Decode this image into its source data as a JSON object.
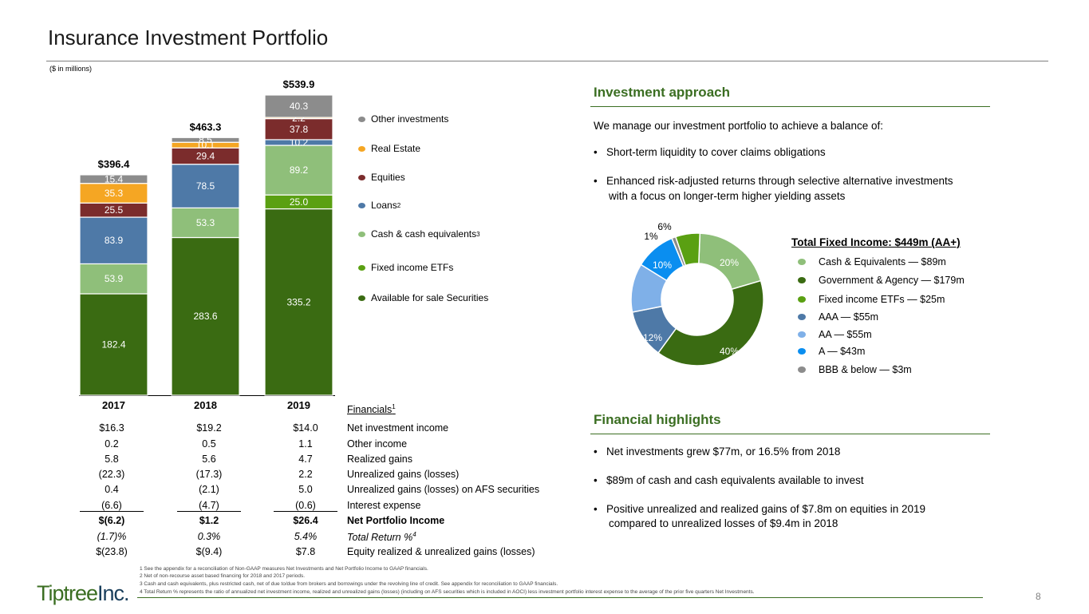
{
  "header": {
    "title": "Insurance Investment Portfolio",
    "subtitle": "($ in millions)"
  },
  "chart_data": [
    {
      "type": "bar",
      "stacked": true,
      "categories": [
        "2017",
        "2018",
        "2019"
      ],
      "totals": [
        "$396.4",
        "$463.3",
        "$539.9"
      ],
      "series": [
        {
          "name": "Available for sale Securities",
          "color": "#3a6b12",
          "values": [
            182.4,
            283.6,
            335.2
          ]
        },
        {
          "name": "Fixed income ETFs",
          "color": "#5aa012",
          "values": [
            0,
            0,
            25.0
          ]
        },
        {
          "name": "Cash & cash equivalents",
          "sup": "3",
          "color": "#8fbf7a",
          "values": [
            53.9,
            53.3,
            89.2
          ]
        },
        {
          "name": "Loans",
          "sup": "2",
          "color": "#4e79a7",
          "values": [
            83.9,
            78.5,
            10.2
          ]
        },
        {
          "name": "Equities",
          "color": "#7b2c2c",
          "values": [
            25.5,
            29.4,
            37.8
          ]
        },
        {
          "name": "Real Estate",
          "color": "#f5a623",
          "values": [
            35.3,
            10.1,
            2.2
          ]
        },
        {
          "name": "Other investments",
          "color": "#8c8c8c",
          "values": [
            15.4,
            8.5,
            40.3
          ]
        }
      ],
      "value_labels": [
        [
          "182.4",
          "",
          "53.9",
          "83.9",
          "25.5",
          "35.3",
          "15.4"
        ],
        [
          "283.6",
          "",
          "53.3",
          "78.5",
          "29.4",
          "10.1",
          "8.5"
        ],
        [
          "335.2",
          "25.0",
          "89.2",
          "10.2",
          "37.8",
          "2.2",
          "40.3"
        ]
      ],
      "ylim": [
        0,
        560
      ]
    },
    {
      "type": "pie",
      "donut": true,
      "title": "Total Fixed Income: $449m (AA+)",
      "slices": [
        {
          "label": "Cash & Equivalents — $89m",
          "pct_label": "20%",
          "value": 20,
          "color": "#8fbf7a"
        },
        {
          "label": "Government & Agency — $179m",
          "pct_label": "40%",
          "value": 40,
          "color": "#3a6b12"
        },
        {
          "label": "AAA — $55m",
          "pct_label": "12%",
          "value": 12,
          "color": "#4e79a7"
        },
        {
          "label": "AA — $55m",
          "pct_label": "12%",
          "value": 12,
          "color": "#7fb0e8"
        },
        {
          "label": "A — $43m",
          "pct_label": "10%",
          "value": 10,
          "color": "#0a8ef0"
        },
        {
          "label": "BBB & below — $3m",
          "pct_label": "1%",
          "value": 1,
          "color": "#8c8c8c"
        },
        {
          "label": "Fixed income ETFs — $25m",
          "pct_label": "6%",
          "value": 6,
          "color": "#5aa012"
        }
      ]
    }
  ],
  "approach": {
    "heading": "Investment approach",
    "intro": "We manage our investment portfolio to achieve a balance of:",
    "bullets": [
      "Short-term liquidity to cover claims obligations",
      "Enhanced risk-adjusted returns through selective alternative investments",
      "with a focus on longer-term higher yielding assets"
    ]
  },
  "financials": {
    "label": "Financials",
    "label_sup": "1",
    "years": [
      "2017",
      "2018",
      "2019"
    ],
    "rows": [
      {
        "label": "Net investment income",
        "values": [
          "$16.3",
          "$19.2",
          "$14.0"
        ]
      },
      {
        "label": "Other income",
        "values": [
          "0.2",
          "0.5",
          "1.1"
        ]
      },
      {
        "label": "Realized gains",
        "values": [
          "5.8",
          "5.6",
          "4.7"
        ]
      },
      {
        "label": "Unrealized gains (losses)",
        "values": [
          "(22.3)",
          "(17.3)",
          "2.2"
        ]
      },
      {
        "label": "Unrealized gains (losses) on AFS securities",
        "values": [
          "0.4",
          "(2.1)",
          "5.0"
        ]
      },
      {
        "label": "Interest expense",
        "values": [
          "(6.6)",
          "(4.7)",
          "(0.6)"
        ]
      },
      {
        "label": "Net Portfolio Income",
        "values": [
          "$(6.2)",
          "$1.2",
          "$26.4"
        ]
      },
      {
        "label": "Total Return %",
        "sup": "4",
        "values": [
          "(1.7)%",
          "0.3%",
          "5.4%"
        ]
      },
      {
        "label": "Equity realized & unrealized gains (losses)",
        "values": [
          "$(23.8)",
          "$(9.4)",
          "$7.8"
        ]
      }
    ]
  },
  "highlights": {
    "heading": "Financial highlights",
    "bullets": [
      "Net investments grew $77m, or 16.5% from 2018",
      "$89m of cash and cash equivalents available to invest",
      "Positive unrealized and realized gains of $7.8m on equities in 2019",
      "compared to unrealized losses of $9.4m in 2018"
    ]
  },
  "footnotes": [
    "1 See the appendix for a reconciliation of Non-GAAP measures Net Investments and Net Portfolio Income to GAAP financials.",
    "2 Net of non-recourse asset based financing for 2018 and 2017 periods.",
    "3 Cash and cash equivalents, plus restricted cash, net of due to/due from brokers and borrowings under the revolving line of credit. See appendix for reconciliation to GAAP financials.",
    "4 Total Return % represents the ratio of annualized net investment income, realized and unrealized gains (losses) (including on AFS securities which is included in AOCI) less investment portfolio interest expense to the average of the prior five quarters Net Investments."
  ],
  "logo": {
    "main": "Tiptree",
    "suffix": "Inc."
  },
  "page_number": "8"
}
